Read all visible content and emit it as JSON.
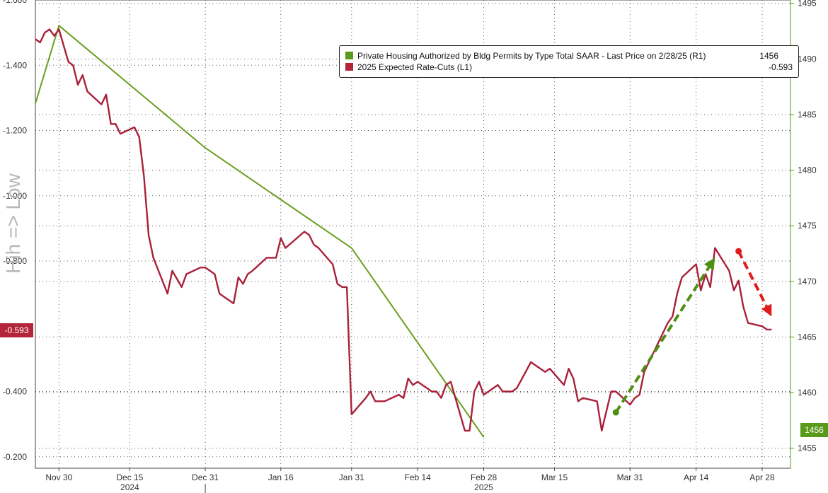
{
  "chart_data": {
    "type": "line",
    "ylabel": "Hih => Low",
    "colors": {
      "permits": "#6a9e1f",
      "ratecuts": "#a8213a",
      "arrow_up": "#4e8f12",
      "arrow_down": "#e01b1b"
    },
    "left_axis": {
      "ylim": [
        -0.1648,
        -1.6
      ],
      "ticks": [
        -1.6,
        -1.4,
        -1.2,
        -1.0,
        -0.8,
        -0.4,
        -0.2
      ],
      "tick_labels": [
        "-1.600",
        "-1.400",
        "-1.200",
        "-1.000",
        "-0.800",
        "-0.400",
        "-0.200"
      ]
    },
    "right_axis": {
      "ylim": [
        1453.2,
        1495.3
      ],
      "ticks": [
        1455,
        1460,
        1465,
        1470,
        1475,
        1480,
        1485,
        1490,
        1495
      ],
      "tick_labels": [
        "1455",
        "1460",
        "1465",
        "1470",
        "1475",
        "1480",
        "1485",
        "1490",
        "1495"
      ]
    },
    "x_axis": {
      "range": [
        "2024-11-25",
        "2025-05-04"
      ],
      "ticks": [
        {
          "date": "2024-11-30",
          "label": "Nov 30"
        },
        {
          "date": "2024-12-15",
          "label": "Dec 15"
        },
        {
          "date": "2024-12-31",
          "label": "Dec 31"
        },
        {
          "date": "2025-01-16",
          "label": "Jan 16"
        },
        {
          "date": "2025-01-31",
          "label": "Jan 31"
        },
        {
          "date": "2025-02-14",
          "label": "Feb 14"
        },
        {
          "date": "2025-02-28",
          "label": "Feb 28"
        },
        {
          "date": "2025-03-15",
          "label": "Mar 15"
        },
        {
          "date": "2025-03-31",
          "label": "Mar 31"
        },
        {
          "date": "2025-04-14",
          "label": "Apr 14"
        },
        {
          "date": "2025-04-28",
          "label": "Apr 28"
        }
      ],
      "year_labels": [
        {
          "date": "2024-12-15",
          "label": "2024"
        },
        {
          "date": "2025-02-28",
          "label": "2025"
        }
      ],
      "year_divider": "2024-12-31"
    },
    "legend": {
      "items": [
        {
          "key": "permits",
          "label": "Private Housing Authorized by Bldg Permits by Type Total SAAR - Last Price on 2/28/25 (R1)",
          "value": "1456"
        },
        {
          "key": "ratecuts",
          "label": "2025 Expected Rate-Cuts (L1)",
          "value": "-0.593"
        }
      ]
    },
    "last_values": {
      "ratecuts": "-0.593",
      "permits": "1456"
    },
    "series": [
      {
        "name": "Private Housing Authorized by Bldg Permits by Type Total SAAR",
        "axis": "right",
        "x": [
          "2024-11-25",
          "2024-11-30",
          "2024-12-31",
          "2025-01-31",
          "2025-02-28"
        ],
        "y": [
          1486.0,
          1493.0,
          1482.0,
          1473.0,
          1456.0
        ]
      },
      {
        "name": "2025 Expected Rate-Cuts",
        "axis": "left",
        "x": [
          "2024-11-25",
          "2024-11-26",
          "2024-11-27",
          "2024-11-28",
          "2024-11-29",
          "2024-11-30",
          "2024-12-02",
          "2024-12-03",
          "2024-12-04",
          "2024-12-05",
          "2024-12-06",
          "2024-12-09",
          "2024-12-10",
          "2024-12-11",
          "2024-12-12",
          "2024-12-13",
          "2024-12-16",
          "2024-12-17",
          "2024-12-18",
          "2024-12-19",
          "2024-12-20",
          "2024-12-23",
          "2024-12-24",
          "2024-12-26",
          "2024-12-27",
          "2024-12-30",
          "2024-12-31",
          "2025-01-02",
          "2025-01-03",
          "2025-01-06",
          "2025-01-07",
          "2025-01-08",
          "2025-01-09",
          "2025-01-10",
          "2025-01-13",
          "2025-01-14",
          "2025-01-15",
          "2025-01-16",
          "2025-01-17",
          "2025-01-21",
          "2025-01-22",
          "2025-01-23",
          "2025-01-24",
          "2025-01-27",
          "2025-01-28",
          "2025-01-29",
          "2025-01-30",
          "2025-01-31",
          "2025-02-03",
          "2025-02-04",
          "2025-02-05",
          "2025-02-06",
          "2025-02-07",
          "2025-02-10",
          "2025-02-11",
          "2025-02-12",
          "2025-02-13",
          "2025-02-14",
          "2025-02-17",
          "2025-02-18",
          "2025-02-19",
          "2025-02-20",
          "2025-02-21",
          "2025-02-24",
          "2025-02-25",
          "2025-02-26",
          "2025-02-27",
          "2025-02-28",
          "2025-03-03",
          "2025-03-04",
          "2025-03-05",
          "2025-03-06",
          "2025-03-07",
          "2025-03-10",
          "2025-03-11",
          "2025-03-12",
          "2025-03-13",
          "2025-03-14",
          "2025-03-17",
          "2025-03-18",
          "2025-03-19",
          "2025-03-20",
          "2025-03-21",
          "2025-03-24",
          "2025-03-25",
          "2025-03-26",
          "2025-03-27",
          "2025-03-28",
          "2025-03-31",
          "2025-04-01",
          "2025-04-02",
          "2025-04-03",
          "2025-04-04",
          "2025-04-07",
          "2025-04-08",
          "2025-04-09",
          "2025-04-10",
          "2025-04-11",
          "2025-04-14",
          "2025-04-15",
          "2025-04-16",
          "2025-04-17",
          "2025-04-18",
          "2025-04-21",
          "2025-04-22",
          "2025-04-23",
          "2025-04-24",
          "2025-04-25",
          "2025-04-28",
          "2025-04-29",
          "2025-04-30"
        ],
        "y": [
          -1.48,
          -1.47,
          -1.5,
          -1.51,
          -1.49,
          -1.51,
          -1.41,
          -1.4,
          -1.34,
          -1.37,
          -1.32,
          -1.28,
          -1.31,
          -1.22,
          -1.22,
          -1.19,
          -1.21,
          -1.18,
          -1.06,
          -0.88,
          -0.81,
          -0.7,
          -0.77,
          -0.72,
          -0.76,
          -0.78,
          -0.78,
          -0.76,
          -0.7,
          -0.67,
          -0.75,
          -0.73,
          -0.76,
          -0.77,
          -0.81,
          -0.81,
          -0.81,
          -0.87,
          -0.84,
          -0.89,
          -0.88,
          -0.85,
          -0.84,
          -0.79,
          -0.73,
          -0.72,
          -0.72,
          -0.33,
          -0.38,
          -0.4,
          -0.37,
          -0.37,
          -0.37,
          -0.39,
          -0.38,
          -0.44,
          -0.42,
          -0.43,
          -0.4,
          -0.4,
          -0.38,
          -0.42,
          -0.43,
          -0.28,
          -0.28,
          -0.4,
          -0.43,
          -0.39,
          -0.42,
          -0.4,
          -0.4,
          -0.4,
          -0.41,
          -0.49,
          -0.48,
          -0.47,
          -0.46,
          -0.47,
          -0.42,
          -0.47,
          -0.44,
          -0.37,
          -0.38,
          -0.37,
          -0.28,
          -0.34,
          -0.4,
          -0.4,
          -0.36,
          -0.38,
          -0.39,
          -0.46,
          -0.49,
          -0.58,
          -0.61,
          -0.63,
          -0.7,
          -0.75,
          -0.79,
          -0.71,
          -0.76,
          -0.72,
          -0.84,
          -0.77,
          -0.71,
          -0.74,
          -0.66,
          -0.61,
          -0.6,
          -0.59,
          -0.59
        ]
      }
    ],
    "annotations": [
      {
        "type": "arrow",
        "style": "dashed",
        "color": "#4e8f12",
        "axis": "left",
        "from": {
          "x": "2025-03-28",
          "y": -0.336
        },
        "to": {
          "x": "2025-04-18",
          "y": -0.81
        }
      },
      {
        "type": "arrow",
        "style": "dashed",
        "color": "#e01b1b",
        "axis": "left",
        "from": {
          "x": "2025-04-23",
          "y": -0.83
        },
        "to": {
          "x": "2025-04-30",
          "y": -0.63
        }
      }
    ]
  }
}
